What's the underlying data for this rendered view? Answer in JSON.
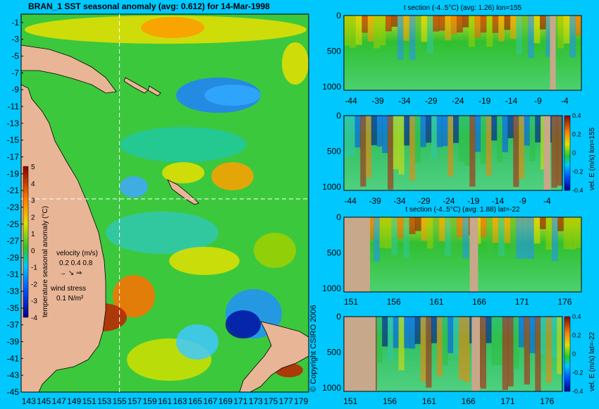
{
  "main_title": "BRAN_1 SST seasonal anomaly (avg: 0.612) for 14-Mar-1998",
  "copyright": "© Copyright CSIRO 2006",
  "colors": {
    "background": "#00c8ff",
    "land": "#e8b596",
    "section_land": "#c8a88a"
  },
  "map": {
    "lat_ticks": [
      "-1",
      "-3",
      "-5",
      "-7",
      "-9",
      "-11",
      "-13",
      "-15",
      "-17",
      "-19",
      "-21",
      "-23",
      "-25",
      "-27",
      "-29",
      "-31",
      "-33",
      "-35",
      "-37",
      "-39",
      "-41",
      "-43",
      "-45"
    ],
    "lon_ticks": [
      "143",
      "145",
      "147",
      "149",
      "151",
      "153",
      "155",
      "157",
      "159",
      "161",
      "163",
      "165",
      "167",
      "169",
      "171",
      "173",
      "175",
      "177",
      "179"
    ],
    "colorbar": {
      "label": "temperature seasonal anomaly (°C)",
      "ticks": [
        "5",
        "4",
        "3",
        "2",
        "1",
        "0",
        "-1",
        "-2",
        "-3",
        "-4"
      ],
      "range": [
        -4,
        5
      ]
    },
    "velocity_legend": {
      "title": "velocity (m/s)",
      "values": "0.2 0.4 0.8"
    },
    "wind_legend": {
      "title": "wind stress",
      "value": "0.1 N/m²"
    },
    "crosshair": {
      "lon": 155,
      "lat": -22
    }
  },
  "chart_data": [
    {
      "type": "heatmap",
      "title": "t section (-4..5°C) (avg: 1.26) lon=155",
      "x_ticks": [
        "-44",
        "-39",
        "-34",
        "-29",
        "-24",
        "-19",
        "-14",
        "-9",
        "-4"
      ],
      "y_ticks": [
        "0",
        "500",
        "1000"
      ],
      "ylim": [
        1050,
        0
      ]
    },
    {
      "type": "heatmap",
      "title": "",
      "x_ticks": [
        "-44",
        "-39",
        "-34",
        "-29",
        "-24",
        "-19",
        "-14",
        "-9",
        "-4"
      ],
      "y_ticks": [
        "0",
        "500",
        "1000"
      ],
      "ylim": [
        1050,
        0
      ],
      "colorbar": {
        "label": "vel. E (m/s) lon=155",
        "ticks": [
          "0.4",
          "0.2",
          "0",
          "-0.2",
          "-0.4"
        ],
        "range": [
          -0.4,
          0.4
        ]
      }
    },
    {
      "type": "heatmap",
      "title": "t section (-4..5°C) (avg: 1.88) lat=-22",
      "x_ticks": [
        "151",
        "156",
        "161",
        "166",
        "171",
        "176"
      ],
      "y_ticks": [
        "0",
        "500",
        "1000"
      ],
      "ylim": [
        1050,
        0
      ]
    },
    {
      "type": "heatmap",
      "title": "",
      "x_ticks": [
        "151",
        "156",
        "161",
        "166",
        "171",
        "176"
      ],
      "y_ticks": [
        "0",
        "500",
        "1000"
      ],
      "ylim": [
        1050,
        0
      ],
      "colorbar": {
        "label": "vel. E (m/s) lat=-22",
        "ticks": [
          "0.4",
          "0.2",
          "0",
          "-0.2",
          "-0.4"
        ],
        "range": [
          -0.4,
          0.4
        ]
      }
    }
  ]
}
